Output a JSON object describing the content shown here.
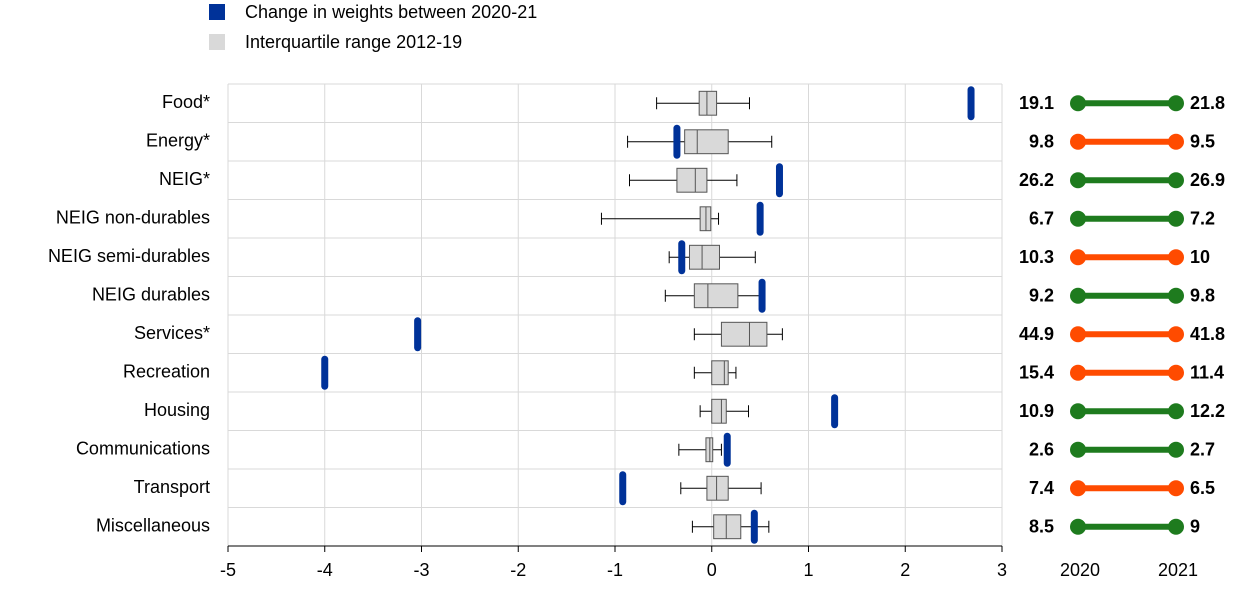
{
  "chart_data": [
    {
      "type": "box",
      "categories": [
        "Food*",
        "Energy*",
        "NEIG*",
        "NEIG non-durables",
        "NEIG semi-durables",
        "NEIG durables",
        "Services*",
        "Recreation",
        "Housing",
        "Communications",
        "Transport",
        "Miscellaneous"
      ],
      "series": [
        {
          "name": "Change in weights between 2020-21",
          "color": "#003299",
          "values": [
            2.68,
            -0.36,
            0.7,
            0.5,
            -0.31,
            0.52,
            -3.04,
            -4.0,
            1.27,
            0.16,
            -0.92,
            0.44
          ]
        },
        {
          "name": "Interquartile range 2012-19",
          "color": "#d9d9d9",
          "whisker_low": [
            -0.57,
            -0.87,
            -0.85,
            -1.14,
            -0.44,
            -0.48,
            -0.18,
            -0.18,
            -0.12,
            -0.34,
            -0.32,
            -0.2
          ],
          "q1": [
            -0.13,
            -0.28,
            -0.36,
            -0.12,
            -0.23,
            -0.18,
            0.1,
            0.0,
            0.0,
            -0.06,
            -0.05,
            0.02
          ],
          "median": [
            -0.05,
            -0.15,
            -0.17,
            -0.06,
            -0.1,
            -0.04,
            0.39,
            0.13,
            0.1,
            -0.02,
            0.05,
            0.15
          ],
          "q3": [
            0.05,
            0.17,
            -0.05,
            -0.01,
            0.08,
            0.27,
            0.57,
            0.17,
            0.15,
            0.01,
            0.17,
            0.3
          ],
          "whisker_high": [
            0.39,
            0.62,
            0.26,
            0.07,
            0.45,
            0.52,
            0.73,
            0.25,
            0.38,
            0.1,
            0.51,
            0.59
          ]
        }
      ],
      "xlim": [
        -5,
        3
      ],
      "xticks": [
        -5,
        -4,
        -3,
        -2,
        -1,
        0,
        1,
        2,
        3
      ],
      "grid": true
    },
    {
      "type": "dumbbell",
      "series": [
        {
          "name": "2020",
          "values": [
            19.1,
            9.8,
            26.2,
            6.7,
            10.3,
            9.2,
            44.9,
            15.4,
            10.9,
            2.6,
            7.4,
            8.5
          ]
        },
        {
          "name": "2021",
          "values": [
            21.8,
            9.5,
            26.9,
            7.2,
            10.0,
            9.8,
            41.8,
            11.4,
            12.2,
            2.7,
            6.5,
            9.0
          ]
        }
      ],
      "increase_color": "#1e7b1e",
      "decrease_color": "#ff4b00"
    }
  ]
}
